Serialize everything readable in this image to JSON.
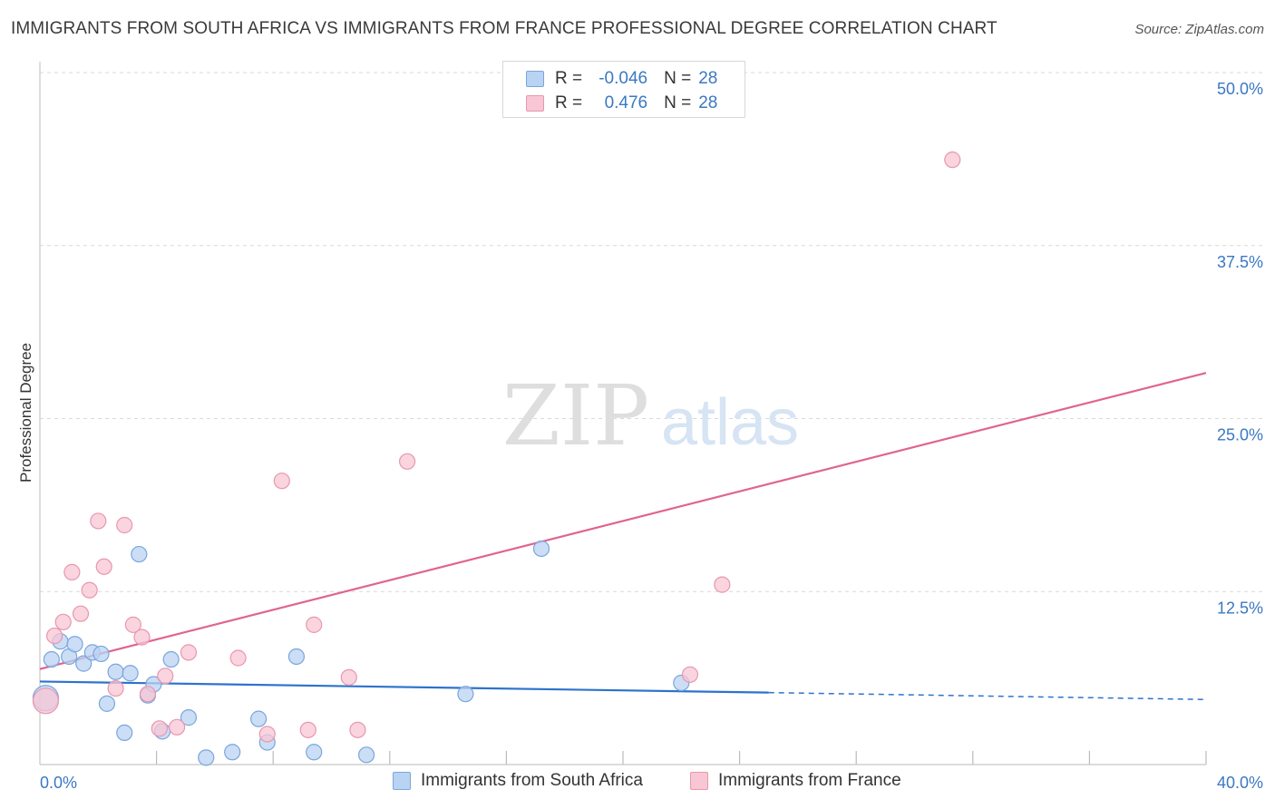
{
  "title": "IMMIGRANTS FROM SOUTH AFRICA VS IMMIGRANTS FROM FRANCE PROFESSIONAL DEGREE CORRELATION CHART",
  "source": "Source: ZipAtlas.com",
  "watermark": {
    "zip": "ZIP",
    "atlas": "atlas"
  },
  "colors": {
    "blue_fill": "#b9d3f3",
    "blue_stroke": "#7aa6dc",
    "blue_line": "#2d73cc",
    "pink_fill": "#f8c6d4",
    "pink_stroke": "#e897ae",
    "pink_line": "#e0648f",
    "tick_text": "#3b78c3",
    "grid": "#d9d9d9"
  },
  "legend": {
    "rows": [
      {
        "swatch": "blue",
        "r_label": "R =",
        "r_value": "-0.046",
        "n_label": "N =",
        "n_value": "28"
      },
      {
        "swatch": "pink",
        "r_label": "R =",
        "r_value": "0.476",
        "n_label": "N =",
        "n_value": "28"
      }
    ]
  },
  "bottom_legend": [
    {
      "swatch": "blue",
      "label": "Immigrants from South Africa"
    },
    {
      "swatch": "pink",
      "label": "Immigrants from France"
    }
  ],
  "chart_data": {
    "type": "scatter",
    "title": "IMMIGRANTS FROM SOUTH AFRICA VS IMMIGRANTS FROM FRANCE PROFESSIONAL DEGREE CORRELATION CHART",
    "xlabel": "",
    "ylabel": "Professional Degree",
    "xlim": [
      0,
      40
    ],
    "ylim": [
      0,
      50
    ],
    "x_tick_labels": {
      "0": "0.0%",
      "40": "40.0%"
    },
    "y_ticks": [
      12.5,
      25.0,
      37.5,
      50.0
    ],
    "y_tick_labels": [
      "12.5%",
      "25.0%",
      "37.5%",
      "50.0%"
    ],
    "grid": true,
    "series": [
      {
        "name": "Immigrants from South Africa",
        "color": "blue",
        "points": [
          [
            0.2,
            4.8
          ],
          [
            0.4,
            7.6
          ],
          [
            0.7,
            8.9
          ],
          [
            1.0,
            7.8
          ],
          [
            1.2,
            8.7
          ],
          [
            1.5,
            7.3
          ],
          [
            1.8,
            8.1
          ],
          [
            2.1,
            8.0
          ],
          [
            2.3,
            4.4
          ],
          [
            2.6,
            6.7
          ],
          [
            2.9,
            2.3
          ],
          [
            3.1,
            6.6
          ],
          [
            3.4,
            15.2
          ],
          [
            3.7,
            5.0
          ],
          [
            3.9,
            5.8
          ],
          [
            4.2,
            2.4
          ],
          [
            4.5,
            7.6
          ],
          [
            5.1,
            3.4
          ],
          [
            5.7,
            0.5
          ],
          [
            6.6,
            0.9
          ],
          [
            7.5,
            3.3
          ],
          [
            7.8,
            1.6
          ],
          [
            8.8,
            7.8
          ],
          [
            9.4,
            0.9
          ],
          [
            11.2,
            0.7
          ],
          [
            14.6,
            5.1
          ],
          [
            17.2,
            15.6
          ],
          [
            22.0,
            5.9
          ]
        ],
        "trend": {
          "x0": 0,
          "y0": 6.0,
          "x1": 25.0,
          "y1": 5.2,
          "dashed_to_x": 40,
          "dashed_to_y": 4.7
        }
      },
      {
        "name": "Immigrants from France",
        "color": "pink",
        "points": [
          [
            0.2,
            4.6
          ],
          [
            0.5,
            9.3
          ],
          [
            0.8,
            10.3
          ],
          [
            1.1,
            13.9
          ],
          [
            1.4,
            10.9
          ],
          [
            1.7,
            12.6
          ],
          [
            2.0,
            17.6
          ],
          [
            2.2,
            14.3
          ],
          [
            2.6,
            5.5
          ],
          [
            2.9,
            17.3
          ],
          [
            3.2,
            10.1
          ],
          [
            3.5,
            9.2
          ],
          [
            3.7,
            5.1
          ],
          [
            4.1,
            2.6
          ],
          [
            4.3,
            6.4
          ],
          [
            4.7,
            2.7
          ],
          [
            5.1,
            8.1
          ],
          [
            6.8,
            7.7
          ],
          [
            7.8,
            2.2
          ],
          [
            8.3,
            20.5
          ],
          [
            9.2,
            2.5
          ],
          [
            9.4,
            10.1
          ],
          [
            10.6,
            6.3
          ],
          [
            10.9,
            2.5
          ],
          [
            12.6,
            21.9
          ],
          [
            22.3,
            6.5
          ],
          [
            23.4,
            13.0
          ],
          [
            31.3,
            43.7
          ]
        ],
        "trend": {
          "x0": 0,
          "y0": 6.9,
          "x1": 40,
          "y1": 28.3
        }
      }
    ]
  }
}
